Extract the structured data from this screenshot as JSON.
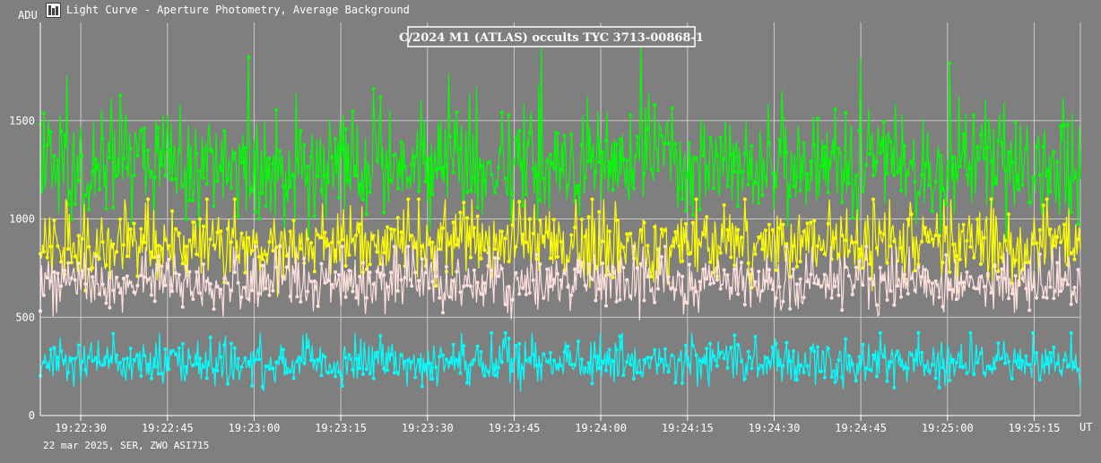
{
  "window": {
    "title": "Light Curve - Aperture Photometry, Average Background",
    "icon": "light-curve-app-icon"
  },
  "footer": {
    "info": "22 mar 2025, SER, ZWO ASI715"
  },
  "colors": {
    "background": "#7f7f7f",
    "grid": "#c8c8c8",
    "text": "#ffffff"
  },
  "chart_data": {
    "type": "line",
    "title": "C/2024 M1 (ATLAS) occults TYC 3713-00868-1",
    "ylabel": "ADU",
    "xlabel": "UT",
    "ylim": [
      0,
      2000
    ],
    "yticks": [
      "0",
      "500",
      "1000",
      "1500"
    ],
    "xticks": [
      "19:22:30",
      "19:22:45",
      "19:23:00",
      "19:23:15",
      "19:23:30",
      "19:23:45",
      "19:24:00",
      "19:24:15",
      "19:24:30",
      "19:24:45",
      "19:25:00",
      "19:25:15"
    ],
    "xrange": [
      "19:22:23",
      "19:25:23"
    ],
    "grid": true,
    "series": [
      {
        "color": "#00ff00",
        "mean": 1280,
        "spread": 140,
        "max": 1900
      },
      {
        "color": "#ffff00",
        "mean": 870,
        "spread": 90,
        "max": 1100
      },
      {
        "color": "#ffe0dc",
        "mean": 670,
        "spread": 70,
        "max": 860
      },
      {
        "color": "#00ffff",
        "mean": 270,
        "spread": 55,
        "max": 420
      }
    ]
  }
}
